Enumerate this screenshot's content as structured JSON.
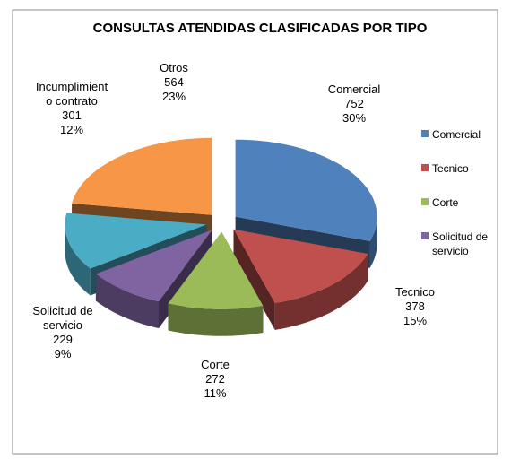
{
  "chart_data": {
    "type": "pie",
    "title": "CONSULTAS ATENDIDAS  CLASIFICADAS POR TIPO",
    "categories": [
      "Comercial",
      "Tecnico",
      "Corte",
      "Solicitud de servicio",
      "Incumplimiento contrato",
      "Otros"
    ],
    "values": [
      752,
      378,
      272,
      229,
      301,
      564
    ],
    "percent_labels": [
      "30%",
      "15%",
      "11%",
      "9%",
      "12%",
      "23%"
    ],
    "colors": [
      "#4f81bd",
      "#c0504d",
      "#9bbb59",
      "#8064a2",
      "#4bacc6",
      "#f79646"
    ],
    "legend": "right"
  }
}
